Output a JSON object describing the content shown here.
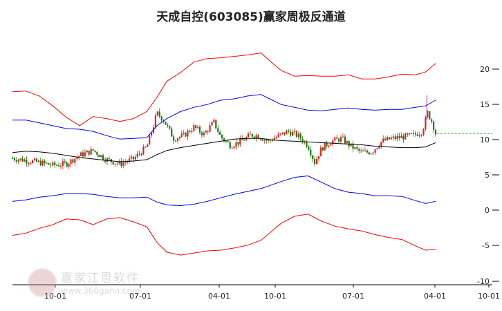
{
  "title": "天成自控(603085)赢家周极反通道",
  "watermark": {
    "name": "赢家江恩软件",
    "url": "www.360gann.com"
  },
  "chart_data": {
    "type": "candlestick",
    "title": "天成自控(603085)赢家周极反通道",
    "x_ticks": [
      "10-01",
      "07-01",
      "04-01",
      "10-01",
      "07-01",
      "04-01",
      "10-01"
    ],
    "y_ticks": [
      "20",
      "15",
      "10",
      "5",
      "0",
      "-5",
      "-10"
    ],
    "ylim": [
      -10,
      21.5
    ],
    "grid": false,
    "colors": {
      "up": "#e02020",
      "down": "#108010",
      "outer_band": "#ff0000",
      "inner_band": "#0000ee",
      "midline": "#000000",
      "last_price": "#00aa00"
    },
    "last_price": 10.9,
    "series": [
      {
        "color": "red",
        "points": [
          [
            0,
            16.8
          ],
          [
            20,
            16.9
          ],
          [
            40,
            16.2
          ],
          [
            60,
            14.8
          ],
          [
            80,
            13.2
          ],
          [
            100,
            12.0
          ],
          [
            120,
            13.3
          ],
          [
            140,
            13.0
          ],
          [
            160,
            12.6
          ],
          [
            180,
            13.0
          ],
          [
            200,
            14.0
          ],
          [
            215,
            16.0
          ],
          [
            230,
            18.3
          ],
          [
            250,
            19.5
          ],
          [
            270,
            21.0
          ],
          [
            290,
            21.5
          ],
          [
            310,
            21.6
          ],
          [
            330,
            21.8
          ],
          [
            350,
            22.0
          ],
          [
            370,
            22.3
          ],
          [
            385,
            21.0
          ],
          [
            400,
            19.8
          ],
          [
            420,
            19.0
          ],
          [
            440,
            19.1
          ],
          [
            460,
            19.0
          ],
          [
            480,
            19.0
          ],
          [
            500,
            19.2
          ],
          [
            520,
            18.6
          ],
          [
            540,
            18.6
          ],
          [
            560,
            18.9
          ],
          [
            580,
            19.3
          ],
          [
            600,
            19.2
          ],
          [
            615,
            19.6
          ],
          [
            630,
            20.8
          ]
        ]
      },
      {
        "color": "blue",
        "points": [
          [
            0,
            12.8
          ],
          [
            20,
            12.8
          ],
          [
            40,
            12.4
          ],
          [
            60,
            12.0
          ],
          [
            80,
            11.6
          ],
          [
            100,
            11.5
          ],
          [
            120,
            11.2
          ],
          [
            140,
            10.6
          ],
          [
            160,
            10.1
          ],
          [
            180,
            10.2
          ],
          [
            200,
            10.3
          ],
          [
            215,
            12.0
          ],
          [
            230,
            13.0
          ],
          [
            250,
            14.0
          ],
          [
            270,
            14.6
          ],
          [
            290,
            15.0
          ],
          [
            310,
            15.6
          ],
          [
            330,
            15.8
          ],
          [
            350,
            16.2
          ],
          [
            370,
            16.4
          ],
          [
            385,
            15.7
          ],
          [
            400,
            15.0
          ],
          [
            420,
            14.6
          ],
          [
            440,
            14.2
          ],
          [
            460,
            14.1
          ],
          [
            480,
            14.3
          ],
          [
            500,
            14.5
          ],
          [
            520,
            14.3
          ],
          [
            540,
            14.2
          ],
          [
            560,
            14.3
          ],
          [
            580,
            14.3
          ],
          [
            600,
            14.6
          ],
          [
            615,
            14.8
          ],
          [
            630,
            15.6
          ]
        ]
      },
      {
        "color": "black",
        "points": [
          [
            0,
            8.2
          ],
          [
            20,
            8.4
          ],
          [
            40,
            8.3
          ],
          [
            60,
            8.1
          ],
          [
            80,
            7.8
          ],
          [
            100,
            7.5
          ],
          [
            120,
            7.3
          ],
          [
            140,
            7.1
          ],
          [
            160,
            6.9
          ],
          [
            180,
            7.0
          ],
          [
            200,
            7.2
          ],
          [
            215,
            7.9
          ],
          [
            230,
            8.5
          ],
          [
            250,
            8.9
          ],
          [
            270,
            9.2
          ],
          [
            290,
            9.5
          ],
          [
            310,
            9.8
          ],
          [
            330,
            10.1
          ],
          [
            350,
            10.2
          ],
          [
            370,
            10.2
          ],
          [
            385,
            10.0
          ],
          [
            400,
            9.9
          ],
          [
            420,
            9.8
          ],
          [
            440,
            9.7
          ],
          [
            460,
            9.6
          ],
          [
            480,
            9.5
          ],
          [
            500,
            9.4
          ],
          [
            520,
            9.3
          ],
          [
            540,
            9.1
          ],
          [
            560,
            9.0
          ],
          [
            580,
            8.9
          ],
          [
            600,
            8.9
          ],
          [
            615,
            9.0
          ],
          [
            630,
            9.6
          ]
        ]
      },
      {
        "color": "blue",
        "points": [
          [
            0,
            1.3
          ],
          [
            20,
            1.5
          ],
          [
            40,
            1.9
          ],
          [
            60,
            2.1
          ],
          [
            80,
            2.4
          ],
          [
            100,
            2.4
          ],
          [
            120,
            2.3
          ],
          [
            140,
            2.0
          ],
          [
            160,
            1.8
          ],
          [
            180,
            1.8
          ],
          [
            200,
            1.9
          ],
          [
            215,
            1.2
          ],
          [
            230,
            0.8
          ],
          [
            250,
            0.7
          ],
          [
            270,
            0.9
          ],
          [
            290,
            1.3
          ],
          [
            310,
            1.8
          ],
          [
            330,
            2.3
          ],
          [
            350,
            2.7
          ],
          [
            370,
            3.1
          ],
          [
            385,
            3.6
          ],
          [
            400,
            4.1
          ],
          [
            420,
            4.7
          ],
          [
            440,
            4.9
          ],
          [
            460,
            4.0
          ],
          [
            480,
            3.1
          ],
          [
            500,
            2.6
          ],
          [
            520,
            2.4
          ],
          [
            540,
            2.1
          ],
          [
            560,
            2.1
          ],
          [
            580,
            2.0
          ],
          [
            600,
            1.4
          ],
          [
            615,
            1.0
          ],
          [
            630,
            1.3
          ]
        ]
      },
      {
        "color": "red",
        "points": [
          [
            0,
            -3.5
          ],
          [
            20,
            -3.2
          ],
          [
            40,
            -2.5
          ],
          [
            60,
            -2.0
          ],
          [
            80,
            -1.2
          ],
          [
            100,
            -1.3
          ],
          [
            120,
            -2.0
          ],
          [
            140,
            -1.2
          ],
          [
            160,
            -1.0
          ],
          [
            180,
            -1.6
          ],
          [
            200,
            -2.3
          ],
          [
            215,
            -4.5
          ],
          [
            230,
            -5.9
          ],
          [
            250,
            -6.3
          ],
          [
            270,
            -6.0
          ],
          [
            290,
            -5.7
          ],
          [
            310,
            -5.6
          ],
          [
            330,
            -5.3
          ],
          [
            350,
            -4.9
          ],
          [
            370,
            -4.2
          ],
          [
            385,
            -3.0
          ],
          [
            400,
            -1.8
          ],
          [
            420,
            -0.8
          ],
          [
            440,
            -0.5
          ],
          [
            460,
            -1.5
          ],
          [
            480,
            -2.2
          ],
          [
            500,
            -2.6
          ],
          [
            520,
            -2.9
          ],
          [
            540,
            -3.4
          ],
          [
            560,
            -3.8
          ],
          [
            580,
            -4.1
          ],
          [
            600,
            -5.0
          ],
          [
            615,
            -5.6
          ],
          [
            630,
            -5.5
          ]
        ]
      },
      {
        "color": "candles",
        "points": [
          [
            0,
            7.4
          ],
          [
            20,
            7.1
          ],
          [
            40,
            6.8
          ],
          [
            60,
            6.4
          ],
          [
            80,
            6.6
          ],
          [
            100,
            7.8
          ],
          [
            120,
            8.5
          ],
          [
            140,
            7.2
          ],
          [
            160,
            6.6
          ],
          [
            180,
            7.3
          ],
          [
            200,
            9.0
          ],
          [
            210,
            12.0
          ],
          [
            215,
            13.8
          ],
          [
            225,
            12.8
          ],
          [
            240,
            10.2
          ],
          [
            255,
            10.6
          ],
          [
            270,
            11.8
          ],
          [
            285,
            10.8
          ],
          [
            300,
            12.5
          ],
          [
            310,
            10.4
          ],
          [
            325,
            9.2
          ],
          [
            340,
            9.8
          ],
          [
            355,
            10.7
          ],
          [
            365,
            10.6
          ],
          [
            380,
            9.8
          ],
          [
            395,
            10.5
          ],
          [
            410,
            11.2
          ],
          [
            425,
            10.6
          ],
          [
            440,
            9.2
          ],
          [
            450,
            6.8
          ],
          [
            460,
            8.8
          ],
          [
            475,
            9.8
          ],
          [
            490,
            10.2
          ],
          [
            505,
            9.0
          ],
          [
            520,
            8.2
          ],
          [
            535,
            8.3
          ],
          [
            550,
            9.8
          ],
          [
            565,
            10.2
          ],
          [
            580,
            10.4
          ],
          [
            595,
            10.6
          ],
          [
            610,
            11.2
          ],
          [
            618,
            13.8
          ],
          [
            625,
            12.5
          ],
          [
            630,
            10.9
          ]
        ]
      }
    ]
  }
}
